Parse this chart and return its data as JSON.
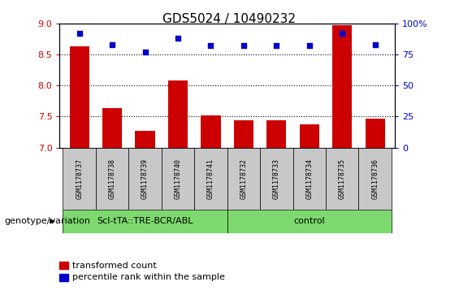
{
  "title": "GDS5024 / 10490232",
  "samples": [
    "GSM1178737",
    "GSM1178738",
    "GSM1178739",
    "GSM1178740",
    "GSM1178741",
    "GSM1178732",
    "GSM1178733",
    "GSM1178734",
    "GSM1178735",
    "GSM1178736"
  ],
  "bar_values": [
    8.63,
    7.63,
    7.27,
    8.08,
    7.52,
    7.44,
    7.44,
    7.37,
    8.97,
    7.47
  ],
  "dot_values_pct": [
    92,
    83,
    77,
    88,
    82,
    82,
    82,
    82,
    92,
    83
  ],
  "ylim_left": [
    7.0,
    9.0
  ],
  "ylim_right": [
    0,
    100
  ],
  "yticks_left": [
    7.0,
    7.5,
    8.0,
    8.5,
    9.0
  ],
  "yticks_right": [
    0,
    25,
    50,
    75,
    100
  ],
  "ytick_labels_right": [
    "0",
    "25",
    "50",
    "75",
    "100%"
  ],
  "bar_color": "#cc0000",
  "dot_color": "#0000cc",
  "group1_label": "Scl-tTA::TRE-BCR/ABL",
  "group2_label": "control",
  "group1_count": 5,
  "group2_count": 5,
  "group_color": "#7dda6e",
  "sample_box_color": "#c8c8c8",
  "genotype_label": "genotype/variation",
  "legend_bar_label": "transformed count",
  "legend_dot_label": "percentile rank within the sample",
  "tick_color_left": "#cc0000",
  "tick_color_right": "#0000cc",
  "title_fontsize": 11,
  "axis_fontsize": 8,
  "sample_fontsize": 6,
  "group_fontsize": 8,
  "legend_fontsize": 8,
  "genotype_fontsize": 8
}
